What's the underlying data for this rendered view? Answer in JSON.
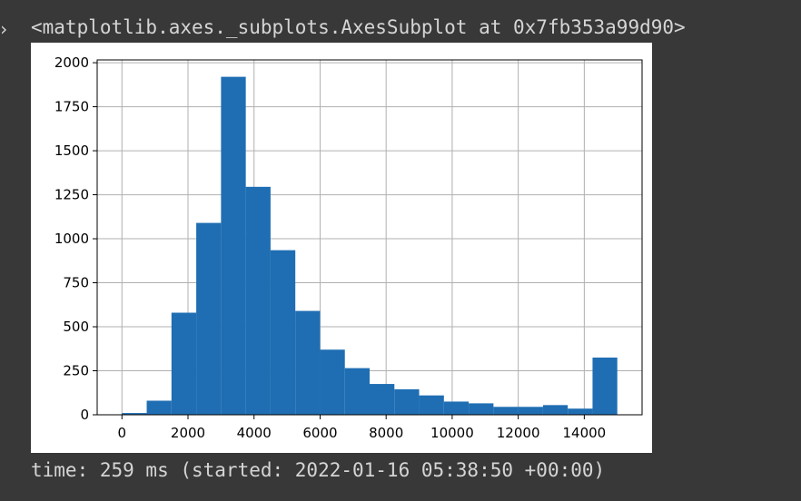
{
  "output": {
    "marker": "›",
    "repr": "<matplotlib.axes._subplots.AxesSubplot at 0x7fb353a99d90>",
    "time": "time: 259 ms (started: 2022-01-16 05:38:50 +00:00)"
  },
  "chart_data": {
    "type": "bar",
    "bin_edges": [
      0,
      750,
      1500,
      2250,
      3000,
      3750,
      4500,
      5250,
      6000,
      6750,
      7500,
      8250,
      9000,
      9750,
      10500,
      11250,
      12000,
      12750,
      13500,
      14250,
      15000
    ],
    "values": [
      10,
      80,
      580,
      1090,
      1920,
      1295,
      935,
      590,
      370,
      265,
      175,
      145,
      110,
      75,
      65,
      45,
      45,
      55,
      35,
      325
    ],
    "xticks": [
      0,
      2000,
      4000,
      6000,
      8000,
      10000,
      12000,
      14000
    ],
    "xtick_labels": [
      "0",
      "2000",
      "4000",
      "6000",
      "8000",
      "10000",
      "12000",
      "14000"
    ],
    "yticks": [
      0,
      250,
      500,
      750,
      1000,
      1250,
      1500,
      1750,
      2000
    ],
    "ytick_labels": [
      "0",
      "250",
      "500",
      "750",
      "1000",
      "1250",
      "1500",
      "1750",
      "2000"
    ],
    "xlim": [
      -750,
      15750
    ],
    "ylim": [
      0,
      2016
    ],
    "grid": true,
    "bar_color": "#1f6eb3"
  }
}
